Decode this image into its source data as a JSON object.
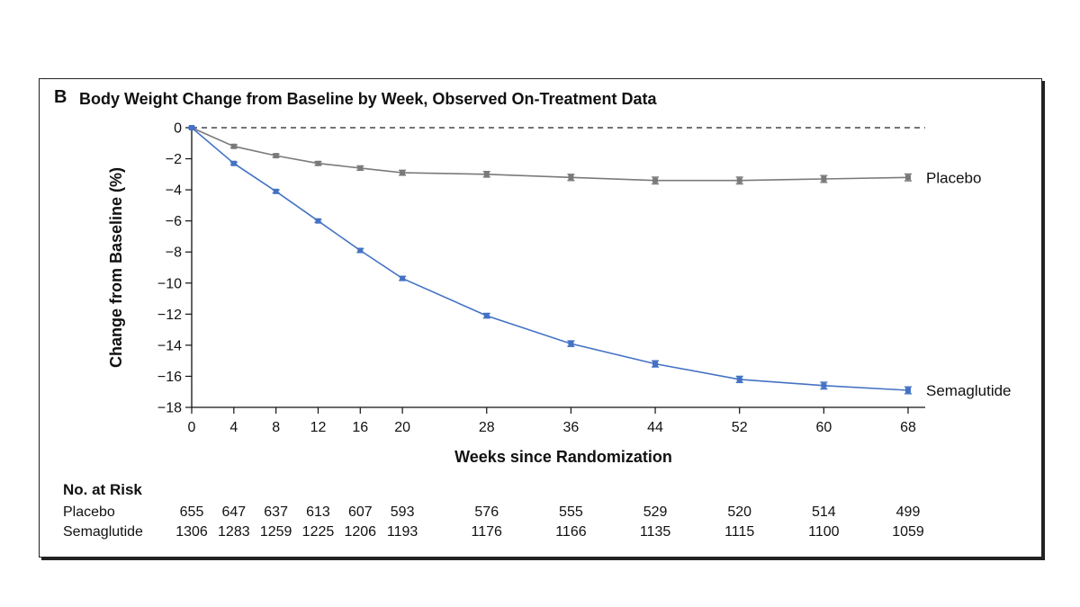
{
  "panel_letter": "B",
  "chart_data": {
    "type": "line",
    "title": "Body Weight Change from Baseline by Week, Observed On-Treatment Data",
    "xlabel": "Weeks since Randomization",
    "ylabel": "Change from Baseline (%)",
    "xlim": [
      0,
      68
    ],
    "ylim": [
      -18,
      0
    ],
    "x_ticks": [
      0,
      4,
      8,
      12,
      16,
      20,
      28,
      36,
      44,
      52,
      60,
      68
    ],
    "y_ticks": [
      0,
      -2,
      -4,
      -6,
      -8,
      -10,
      -12,
      -14,
      -16,
      -18
    ],
    "y_tick_labels": [
      "0",
      "−2",
      "−4",
      "−6",
      "−8",
      "−10",
      "−12",
      "−14",
      "−16",
      "−18"
    ],
    "reference_line": {
      "y": 0,
      "style": "dashed"
    },
    "grid": false,
    "series": [
      {
        "name": "Placebo",
        "color": "#7a7a7a",
        "x": [
          0,
          4,
          8,
          12,
          16,
          20,
          28,
          36,
          44,
          52,
          60,
          68
        ],
        "values": [
          0,
          -1.2,
          -1.8,
          -2.3,
          -2.6,
          -2.9,
          -3.0,
          -3.2,
          -3.4,
          -3.4,
          -3.3,
          -3.2
        ],
        "error": [
          0.05,
          0.1,
          0.1,
          0.12,
          0.14,
          0.16,
          0.18,
          0.2,
          0.22,
          0.22,
          0.22,
          0.22
        ]
      },
      {
        "name": "Semaglutide",
        "color": "#4472c4",
        "x": [
          0,
          4,
          8,
          12,
          16,
          20,
          28,
          36,
          44,
          52,
          60,
          68
        ],
        "values": [
          0,
          -2.3,
          -4.1,
          -6.0,
          -7.9,
          -9.7,
          -12.1,
          -13.9,
          -15.2,
          -16.2,
          -16.6,
          -16.9
        ],
        "error": [
          0.05,
          0.08,
          0.1,
          0.1,
          0.12,
          0.13,
          0.15,
          0.18,
          0.2,
          0.2,
          0.22,
          0.22
        ]
      }
    ],
    "number_at_risk": {
      "heading": "No. at Risk",
      "rows": [
        {
          "label": "Placebo",
          "values": [
            "655",
            "647",
            "637",
            "613",
            "607",
            "593",
            "576",
            "555",
            "529",
            "520",
            "514",
            "499"
          ]
        },
        {
          "label": "Semaglutide",
          "values": [
            "1306",
            "1283",
            "1259",
            "1225",
            "1206",
            "1193",
            "1176",
            "1166",
            "1135",
            "1115",
            "1100",
            "1059"
          ]
        }
      ]
    }
  }
}
